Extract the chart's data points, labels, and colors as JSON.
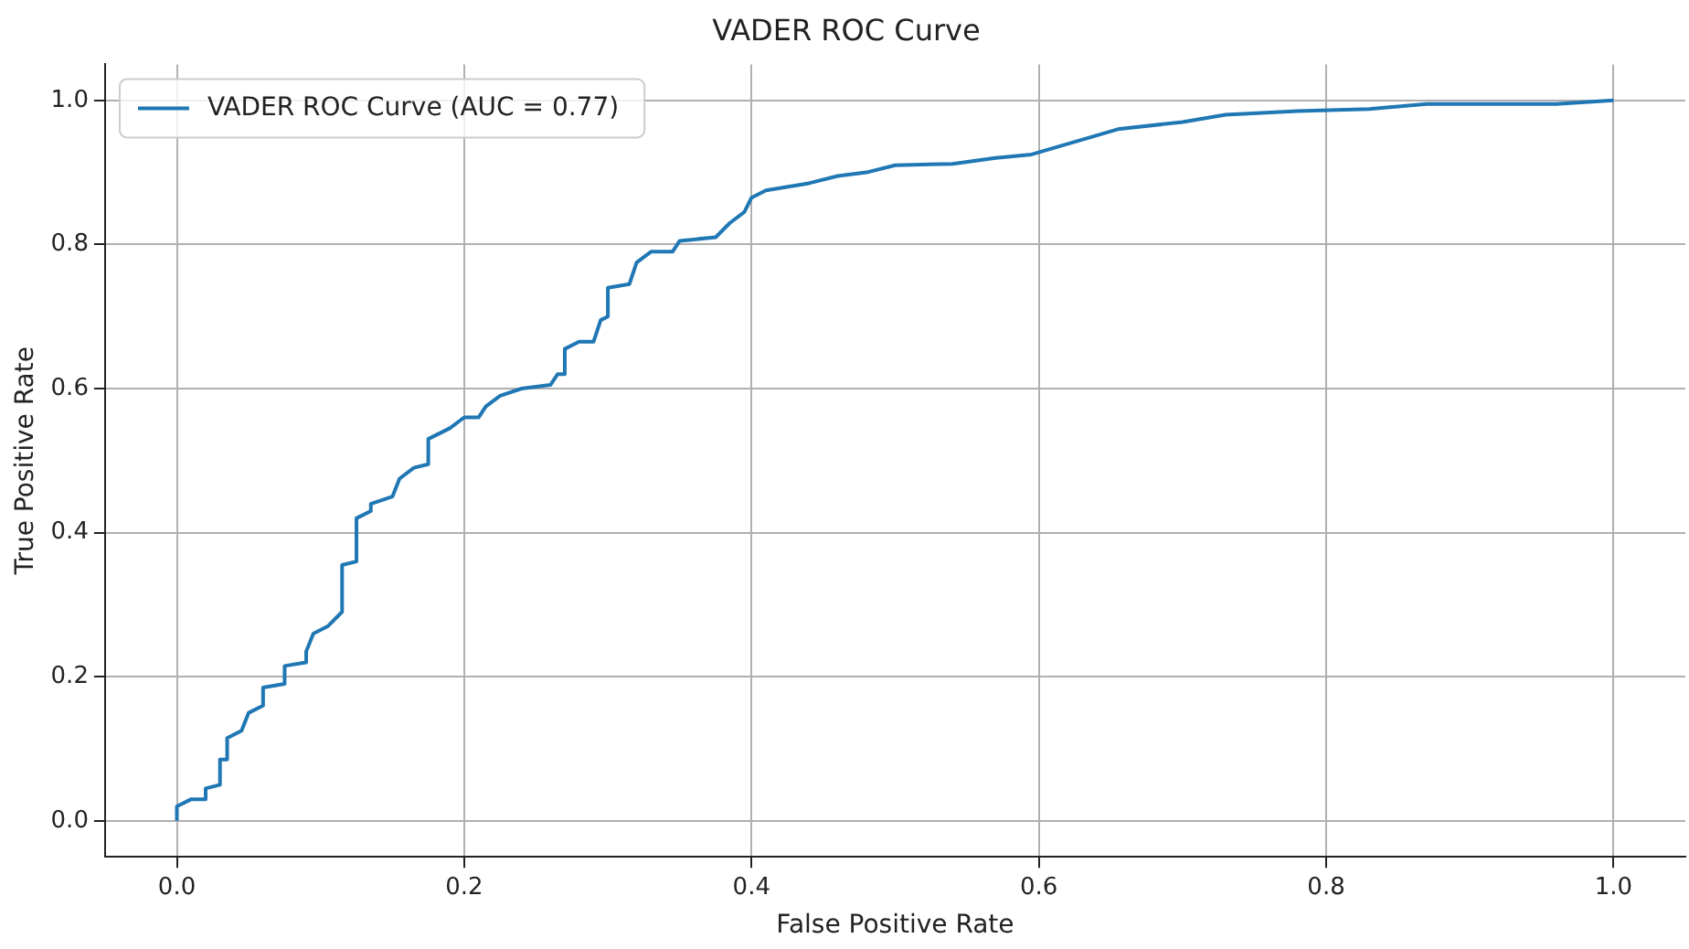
{
  "chart_data": {
    "type": "line",
    "title": "VADER ROC Curve",
    "xlabel": "False Positive Rate",
    "ylabel": "True Positive Rate",
    "series": [
      {
        "name": "VADER ROC Curve (AUC = 0.77)",
        "color": "#1f77b4",
        "x": [
          0,
          0,
          0.01,
          0.02,
          0.02,
          0.03,
          0.03,
          0.035,
          0.035,
          0.045,
          0.05,
          0.06,
          0.06,
          0.075,
          0.075,
          0.09,
          0.09,
          0.095,
          0.105,
          0.115,
          0.115,
          0.125,
          0.125,
          0.135,
          0.135,
          0.15,
          0.155,
          0.165,
          0.175,
          0.175,
          0.19,
          0.2,
          0.21,
          0.215,
          0.225,
          0.24,
          0.26,
          0.265,
          0.27,
          0.27,
          0.28,
          0.29,
          0.295,
          0.3,
          0.3,
          0.315,
          0.32,
          0.33,
          0.345,
          0.35,
          0.375,
          0.385,
          0.395,
          0.4,
          0.41,
          0.44,
          0.46,
          0.48,
          0.5,
          0.54,
          0.57,
          0.595,
          0.655,
          0.7,
          0.73,
          0.78,
          0.83,
          0.87,
          0.96,
          1
        ],
        "values": [
          0,
          0.02,
          0.03,
          0.03,
          0.045,
          0.05,
          0.085,
          0.085,
          0.115,
          0.125,
          0.15,
          0.16,
          0.185,
          0.19,
          0.215,
          0.22,
          0.235,
          0.26,
          0.27,
          0.29,
          0.355,
          0.36,
          0.42,
          0.43,
          0.44,
          0.45,
          0.475,
          0.49,
          0.495,
          0.53,
          0.545,
          0.56,
          0.56,
          0.575,
          0.59,
          0.6,
          0.605,
          0.62,
          0.62,
          0.655,
          0.665,
          0.665,
          0.695,
          0.7,
          0.74,
          0.745,
          0.775,
          0.79,
          0.79,
          0.805,
          0.81,
          0.83,
          0.845,
          0.865,
          0.875,
          0.885,
          0.895,
          0.9,
          0.91,
          0.912,
          0.92,
          0.925,
          0.96,
          0.97,
          0.98,
          0.985,
          0.988,
          0.995,
          0.995,
          1
        ]
      }
    ],
    "xlim": [
      -0.05,
      1.05
    ],
    "xticks": [
      {
        "value": 0,
        "label": "0.0"
      },
      0.2,
      0.4,
      0.6,
      0.8,
      {
        "value": 1,
        "label": "1.0"
      }
    ],
    "ylim": [
      -0.05,
      1.05
    ],
    "yticks": [
      {
        "value": 0,
        "label": "0.0"
      },
      0.2,
      0.4,
      0.6,
      0.8,
      {
        "value": 1,
        "label": "1.0"
      }
    ],
    "grid": true,
    "legend": "top left",
    "marker": "none",
    "line_style": "solid"
  }
}
